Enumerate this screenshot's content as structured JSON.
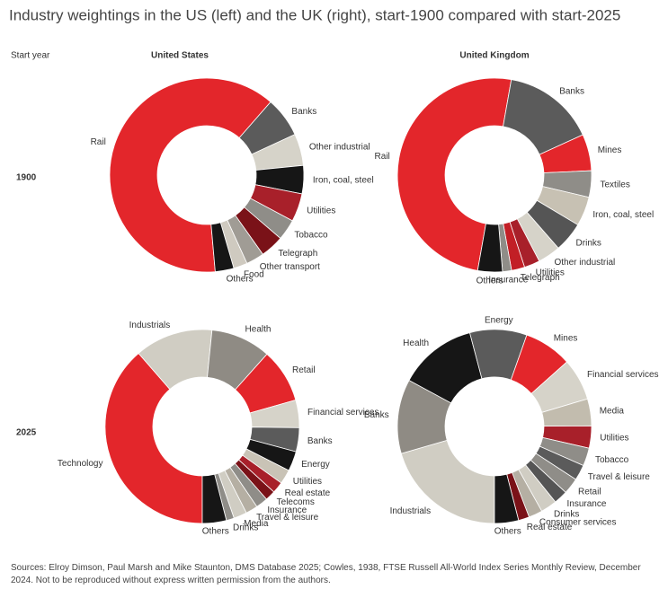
{
  "title": "Industry weightings in the US (left) and the UK (right), start-1900 compared with start-2025",
  "start_year_label": "Start year",
  "columns": [
    "United States",
    "United Kingdom"
  ],
  "rows": [
    "1900",
    "2025"
  ],
  "source": "Sources: Elroy Dimson, Paul Marsh and Mike Staunton, DMS Database 2025; Cowles, 1938, FTSE Russell All-World Index Series Monthly Review, December 2024. Not to be reproduced without express written permission from the authors.",
  "chart_data": [
    {
      "type": "pie",
      "categories": [
        "Rail",
        "Banks",
        "Other industrial",
        "Iron, coal, steel",
        "Utilities",
        "Tobacco",
        "Telegraph",
        "Other transport",
        "Food",
        "Others"
      ],
      "values": [
        62.8,
        6.7,
        5.3,
        4.7,
        4.7,
        3.5,
        3.9,
        3.0,
        2.3,
        3.1
      ],
      "colors": [
        "#e3262b",
        "#5b5b5b",
        "#d6d3c9",
        "#161616",
        "#a8202a",
        "#8f8d88",
        "#7a1218",
        "#a09c95",
        "#cfcac0",
        "#161616"
      ]
    },
    {
      "type": "pie",
      "categories": [
        "Rail",
        "Banks",
        "Mines",
        "Textiles",
        "Iron, coal, steel",
        "Drinks",
        "Other industrial",
        "Utilities",
        "Telegraph",
        "Insurance",
        "Others"
      ],
      "values": [
        50.0,
        15.4,
        6.1,
        4.4,
        4.9,
        5.0,
        3.8,
        2.6,
        2.2,
        1.5,
        4.1
      ],
      "colors": [
        "#e3262b",
        "#5b5b5b",
        "#e3262b",
        "#8f8d88",
        "#c7c1b3",
        "#555555",
        "#d6d3c9",
        "#a8202a",
        "#c21f26",
        "#8f8d88",
        "#161616"
      ]
    },
    {
      "type": "pie",
      "categories": [
        "Technology",
        "Industrials",
        "Health",
        "Retail",
        "Financial services",
        "Banks",
        "Energy",
        "Utilities",
        "Real estate",
        "Telecoms",
        "Insurance",
        "Travel & leisure",
        "Media",
        "Drinks",
        "Others"
      ],
      "values": [
        38.6,
        13.0,
        10.0,
        9.0,
        4.6,
        4.0,
        3.3,
        2.4,
        1.9,
        1.7,
        2.0,
        2.0,
        2.2,
        1.3,
        4.0
      ],
      "colors": [
        "#e3262b",
        "#d0cdc3",
        "#8f8b84",
        "#e3262b",
        "#d6d3c9",
        "#5b5b5b",
        "#161616",
        "#c9c3b6",
        "#a8202a",
        "#7a1218",
        "#8f8d88",
        "#b5afa3",
        "#d0cdc3",
        "#8f8d88",
        "#161616"
      ]
    },
    {
      "type": "pie",
      "categories": [
        "Industrials",
        "Banks",
        "Health",
        "Energy",
        "Mines",
        "Financial services",
        "Media",
        "Utilities",
        "Tobacco",
        "Travel & leisure",
        "Retail",
        "Insurance",
        "Drinks",
        "Consumer services",
        "Real estate",
        "Others"
      ],
      "values": [
        20.5,
        12.4,
        13.0,
        9.5,
        8.0,
        7.0,
        4.5,
        3.7,
        3.0,
        2.6,
        2.7,
        2.3,
        2.7,
        2.3,
        1.8,
        4.0
      ],
      "colors": [
        "#d0cdc3",
        "#8f8b84",
        "#161616",
        "#5b5b5b",
        "#e3262b",
        "#d6d3c9",
        "#c2bcae",
        "#a8202a",
        "#8f8d88",
        "#5b5b5b",
        "#8f8d88",
        "#555555",
        "#d0cdc3",
        "#b5afa3",
        "#7a1218",
        "#161616"
      ]
    }
  ]
}
